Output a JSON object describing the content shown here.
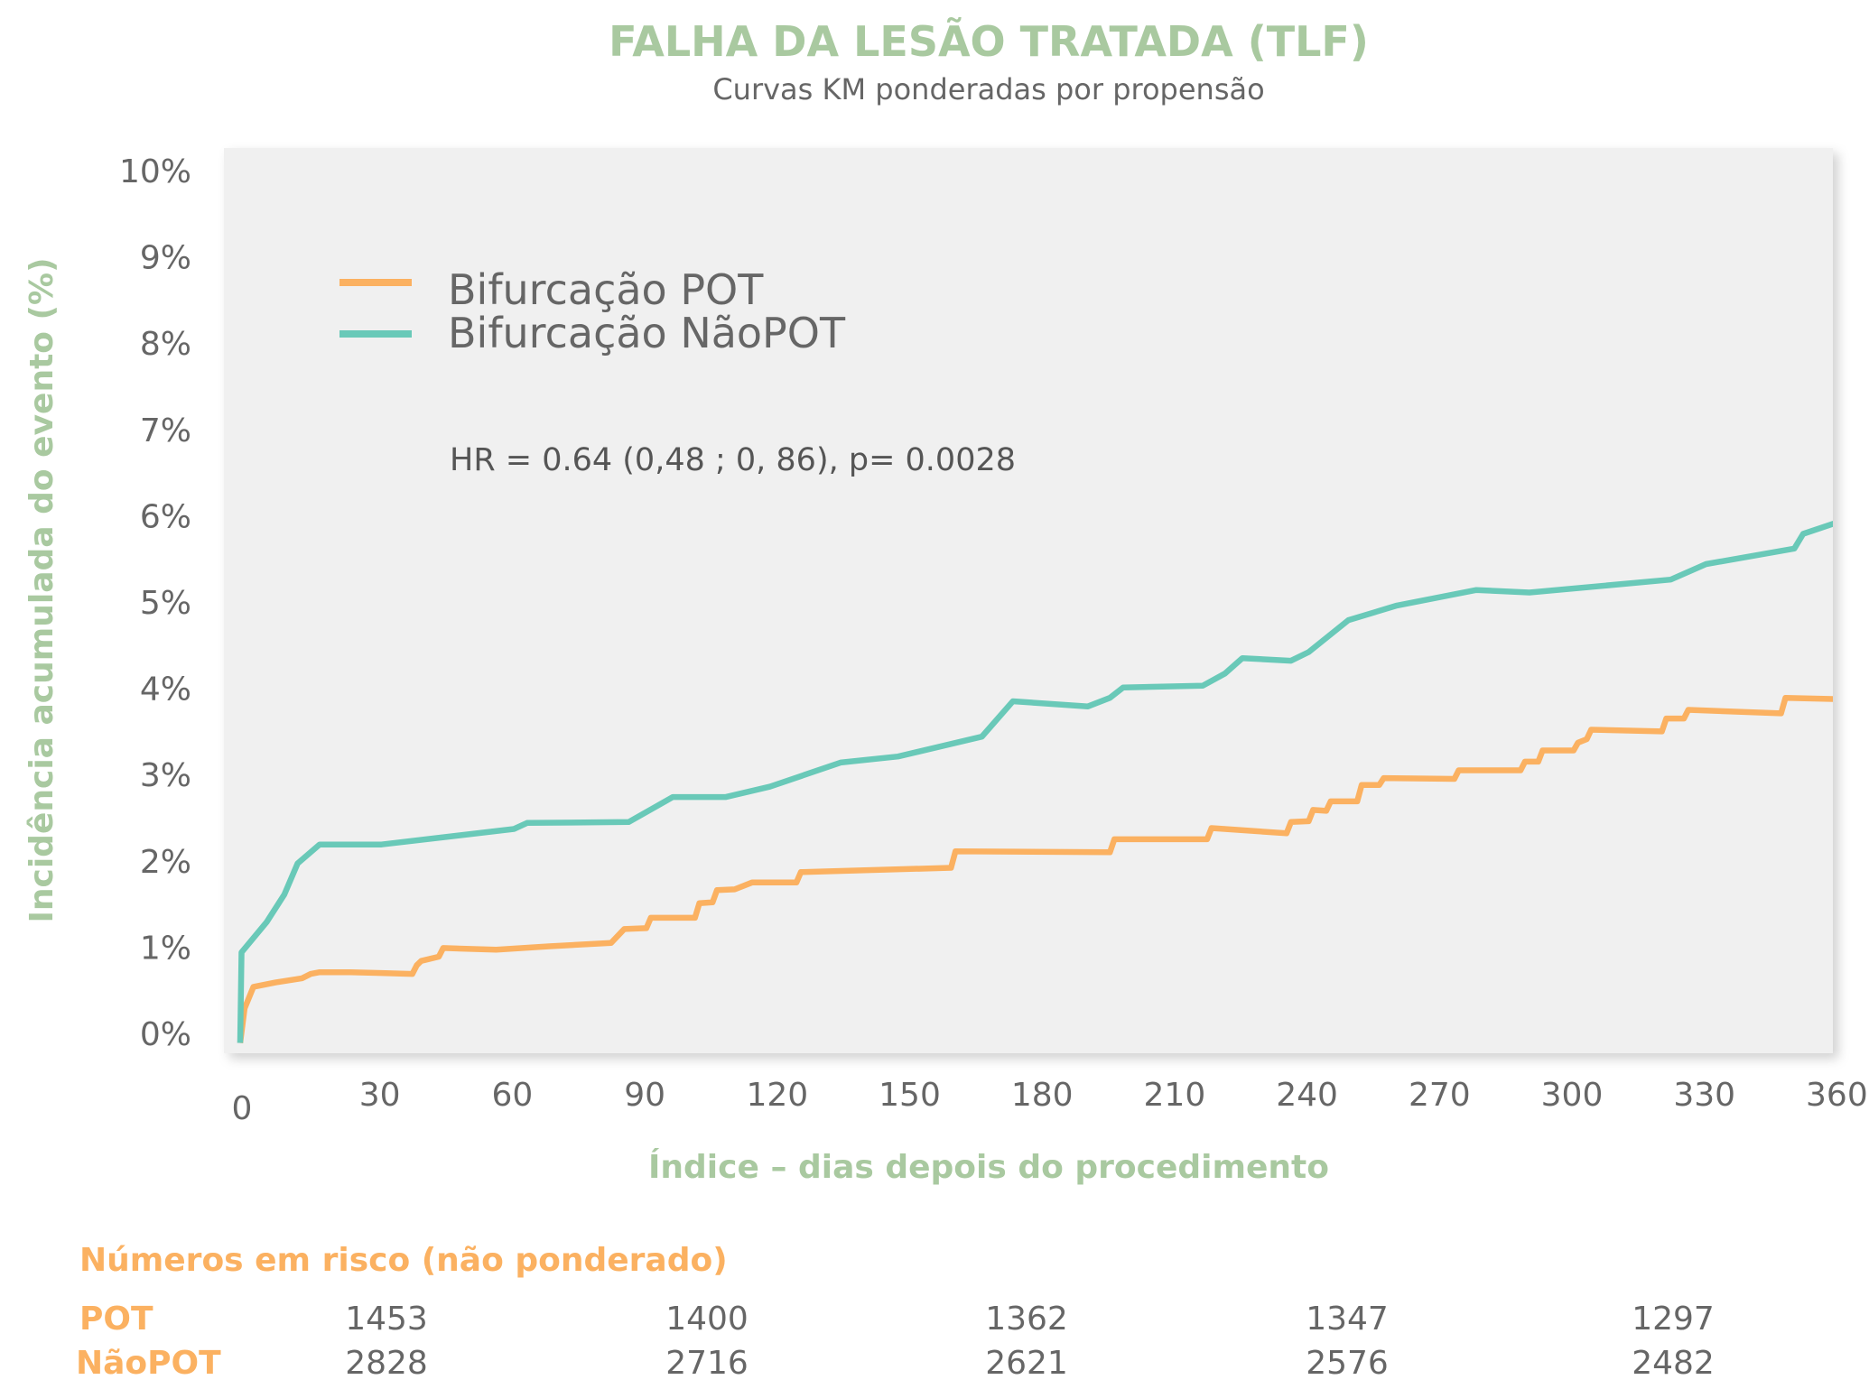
{
  "chart_data": {
    "type": "line",
    "title": "FALHA DA LESÃO TRATADA (TLF)",
    "subtitle": "Curvas KM ponderadas por propensão",
    "xlabel": "Índice – dias depois do procedimento",
    "ylabel": "Incidência acumulada do evento (%)",
    "xlim": [
      0,
      365
    ],
    "ylim": [
      0,
      10
    ],
    "x_ticks": [
      "0",
      "30",
      "60",
      "90",
      "120",
      "150",
      "180",
      "210",
      "240",
      "270",
      "300",
      "330",
      "360"
    ],
    "y_ticks": [
      "0%",
      "1%",
      "2%",
      "3%",
      "4%",
      "5%",
      "6%",
      "7%",
      "8%",
      "9%",
      "10%"
    ],
    "legend_position": "top-left",
    "annotation": "HR = 0.64 (0,48 ; 0, 86), p= 0.0028",
    "series": [
      {
        "name": "Bifurcação POT",
        "color": "#fbb161",
        "points": [
          [
            0,
            -0.1
          ],
          [
            1,
            0.3
          ],
          [
            3,
            0.55
          ],
          [
            8,
            0.6
          ],
          [
            14,
            0.65
          ],
          [
            16,
            0.7
          ],
          [
            18,
            0.72
          ],
          [
            25,
            0.72
          ],
          [
            32,
            0.71
          ],
          [
            39,
            0.7
          ],
          [
            40,
            0.8
          ],
          [
            41,
            0.85
          ],
          [
            45,
            0.9
          ],
          [
            46,
            1.0
          ],
          [
            58,
            0.98
          ],
          [
            70,
            1.02
          ],
          [
            84,
            1.06
          ],
          [
            87,
            1.22
          ],
          [
            92,
            1.23
          ],
          [
            93,
            1.35
          ],
          [
            103,
            1.35
          ],
          [
            104,
            1.52
          ],
          [
            107,
            1.53
          ],
          [
            108,
            1.67
          ],
          [
            112,
            1.68
          ],
          [
            116,
            1.76
          ],
          [
            126,
            1.76
          ],
          [
            127,
            1.88
          ],
          [
            161,
            1.93
          ],
          [
            162,
            2.12
          ],
          [
            197,
            2.11
          ],
          [
            198,
            2.26
          ],
          [
            219,
            2.26
          ],
          [
            220,
            2.39
          ],
          [
            237,
            2.33
          ],
          [
            238,
            2.46
          ],
          [
            242,
            2.47
          ],
          [
            243,
            2.6
          ],
          [
            246,
            2.59
          ],
          [
            247,
            2.7
          ],
          [
            253,
            2.7
          ],
          [
            254,
            2.89
          ],
          [
            258,
            2.89
          ],
          [
            259,
            2.97
          ],
          [
            275,
            2.96
          ],
          [
            276,
            3.06
          ],
          [
            290,
            3.06
          ],
          [
            291,
            3.16
          ],
          [
            294,
            3.16
          ],
          [
            295,
            3.29
          ],
          [
            302,
            3.29
          ],
          [
            303,
            3.38
          ],
          [
            305,
            3.42
          ],
          [
            306,
            3.53
          ],
          [
            322,
            3.51
          ],
          [
            323,
            3.66
          ],
          [
            327,
            3.66
          ],
          [
            328,
            3.76
          ],
          [
            349,
            3.72
          ],
          [
            350,
            3.9
          ],
          [
            366,
            3.88
          ]
        ]
      },
      {
        "name": "Bifurcação NãoPOT",
        "color": "#69c9b8",
        "points": [
          [
            0,
            -0.1
          ],
          [
            0.3,
            0.95
          ],
          [
            6,
            1.3
          ],
          [
            10,
            1.62
          ],
          [
            13,
            1.98
          ],
          [
            18,
            2.2
          ],
          [
            32,
            2.2
          ],
          [
            62,
            2.38
          ],
          [
            65,
            2.45
          ],
          [
            88,
            2.46
          ],
          [
            98,
            2.75
          ],
          [
            110,
            2.75
          ],
          [
            120,
            2.87
          ],
          [
            136,
            3.15
          ],
          [
            149,
            3.22
          ],
          [
            168,
            3.45
          ],
          [
            175,
            3.86
          ],
          [
            192,
            3.8
          ],
          [
            197,
            3.9
          ],
          [
            200,
            4.02
          ],
          [
            218,
            4.04
          ],
          [
            223,
            4.18
          ],
          [
            227,
            4.36
          ],
          [
            238,
            4.33
          ],
          [
            242,
            4.43
          ],
          [
            251,
            4.8
          ],
          [
            262,
            4.97
          ],
          [
            280,
            5.15
          ],
          [
            292,
            5.12
          ],
          [
            324,
            5.27
          ],
          [
            332,
            5.45
          ],
          [
            352,
            5.63
          ],
          [
            354,
            5.8
          ],
          [
            361,
            5.92
          ],
          [
            370,
            5.92
          ]
        ]
      }
    ],
    "numbers_at_risk": {
      "title": "Números em risco (não ponderado)",
      "rows": [
        {
          "label": "POT",
          "values": [
            "1453",
            "1400",
            "1362",
            "1347",
            "1297"
          ]
        },
        {
          "label": "NãoPOT",
          "values": [
            "2828",
            "2716",
            "2621",
            "2576",
            "2482"
          ]
        }
      ]
    }
  }
}
